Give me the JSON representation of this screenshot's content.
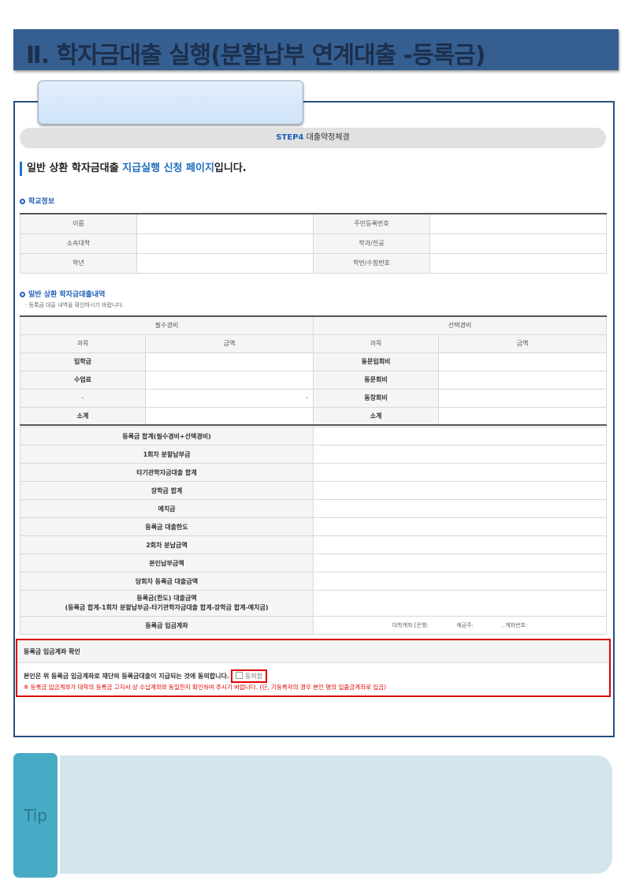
{
  "banner": {
    "title": "Ⅱ. 학자금대출 실행(분할납부 연계대출 -등록금)"
  },
  "step": {
    "label": "STEP4",
    "text": "대출약정체결"
  },
  "heading": {
    "part1": "일반 상환 학자금대출 ",
    "highlight": "지급실행 신청 페이지",
    "part2": "입니다."
  },
  "school_info": {
    "title": "학교정보",
    "rows": [
      [
        "이름",
        "",
        "주민등록번호",
        ""
      ],
      [
        "소속대학",
        "",
        "학과/전공",
        ""
      ],
      [
        "학년",
        "",
        "학번/수험번호",
        ""
      ]
    ]
  },
  "loan_details": {
    "title": "일반 상환 학자금대출내역",
    "note": "· 등록금 대출 내역을 확인하시기 바랍니다.",
    "group_headers": [
      "필수경비",
      "선택경비"
    ],
    "col_headers": [
      "과목",
      "금액",
      "과목",
      "금액"
    ],
    "rows": [
      [
        "입학금",
        "",
        "동문입회비",
        ""
      ],
      [
        "수업료",
        "",
        "동문회비",
        ""
      ],
      [
        "-",
        "-",
        "동창회비",
        ""
      ],
      [
        "소계",
        "",
        "소계",
        ""
      ]
    ],
    "summary": [
      "등록금 합계(필수경비+선택경비)",
      "1회차 분할납부금",
      "타기관학자금대출 합계",
      "장학금 합계",
      "예치금",
      "등록금 대출한도",
      "2회차 분납금액",
      "본인납부금액",
      "당회차 등록금 대출금액"
    ],
    "loan_amount_label": "등록금(한도) 대출금액",
    "loan_amount_formula": "(등록금 합계-1회차 분할납부금-타기관학자금대출 합계-장학금 합계-예치금)",
    "account_label": "등록금 입금계좌",
    "account_value": "대학계좌 [은행:                예금주:                , 계좌번호:"
  },
  "agreement": {
    "title": "등록금 입금계좌 확인",
    "text": "본인은 위 등록금 입금계좌로 재단의 등록금대출이 지급되는 것에 동의합니다.",
    "checkbox_label": "동의함",
    "checked": false,
    "warning": "※ 등록금 입금계좌가 대학의 등록금 고지서 상 수납계좌와 동일한지 확인하여 주시기 바랍니다. (단, 기등록자의 경우 본인 명의 입출금계좌로 입금)"
  },
  "tip": {
    "label": "Tip"
  },
  "colors": {
    "banner": "#365f91",
    "frame": "#254f7e",
    "highlight": "#e00000",
    "accent": "#1f5fb8",
    "tip": "#48abc5"
  }
}
